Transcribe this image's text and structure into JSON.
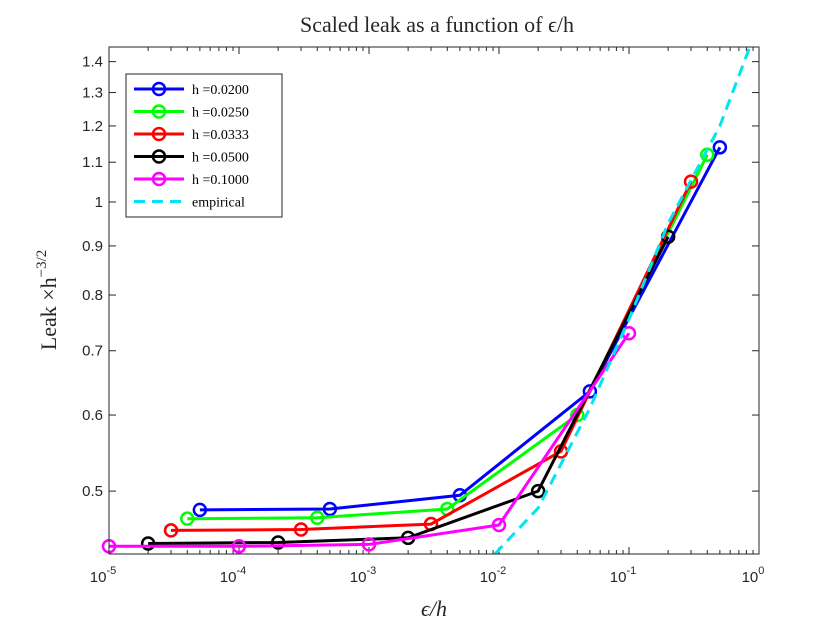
{
  "chart_data": {
    "type": "line",
    "title": "Scaled leak as a function of ϵ/h",
    "xlabel": "ϵ/h",
    "ylabel": "Leak ×h",
    "ylabel_exponent": "−3/2",
    "x_scale": "log",
    "y_scale": "log",
    "xlim": [
      1e-05,
      1
    ],
    "ylim": [
      0.43,
      1.45
    ],
    "x_ticks": [
      {
        "value": 1e-05,
        "base": "10",
        "exp": "-5"
      },
      {
        "value": 0.0001,
        "base": "10",
        "exp": "-4"
      },
      {
        "value": 0.001,
        "base": "10",
        "exp": "-3"
      },
      {
        "value": 0.01,
        "base": "10",
        "exp": "-2"
      },
      {
        "value": 0.1,
        "base": "10",
        "exp": "-1"
      },
      {
        "value": 1,
        "base": "10",
        "exp": "0"
      }
    ],
    "y_ticks": [
      {
        "value": 0.5,
        "label": "0.5"
      },
      {
        "value": 0.6,
        "label": "0.6"
      },
      {
        "value": 0.7,
        "label": "0.7"
      },
      {
        "value": 0.8,
        "label": "0.8"
      },
      {
        "value": 0.9,
        "label": "0.9"
      },
      {
        "value": 1.0,
        "label": "1"
      },
      {
        "value": 1.1,
        "label": "1.1"
      },
      {
        "value": 1.2,
        "label": "1.2"
      },
      {
        "value": 1.3,
        "label": "1.3"
      },
      {
        "value": 1.4,
        "label": "1.4"
      }
    ],
    "grid": false,
    "legend_position": "top-left",
    "series": [
      {
        "name": "h =0.0200",
        "color": "#0000ff",
        "marker": "circle",
        "x": [
          5e-05,
          0.0005,
          0.005,
          0.05,
          0.5
        ],
        "y": [
          0.478,
          0.479,
          0.495,
          0.635,
          1.14
        ]
      },
      {
        "name": "h =0.0250",
        "color": "#00ff00",
        "marker": "circle",
        "x": [
          4e-05,
          0.0004,
          0.004,
          0.04,
          0.4
        ],
        "y": [
          0.468,
          0.469,
          0.479,
          0.6,
          1.12
        ]
      },
      {
        "name": "h =0.0333",
        "color": "#ff0000",
        "marker": "circle",
        "x": [
          3e-05,
          0.0003,
          0.003,
          0.03,
          0.3
        ],
        "y": [
          0.455,
          0.456,
          0.462,
          0.55,
          1.05
        ]
      },
      {
        "name": "h =0.0500",
        "color": "#000000",
        "marker": "circle",
        "x": [
          2e-05,
          0.0002,
          0.002,
          0.02,
          0.2
        ],
        "y": [
          0.441,
          0.442,
          0.447,
          0.5,
          0.92
        ]
      },
      {
        "name": "h =0.1000",
        "color": "#ff00ff",
        "marker": "circle",
        "x": [
          1e-05,
          0.0001,
          0.001,
          0.01,
          0.1
        ],
        "y": [
          0.438,
          0.438,
          0.44,
          0.461,
          0.73
        ]
      },
      {
        "name": "empirical",
        "color": "#00e5ee",
        "style": "dashed",
        "x": [
          0.0093,
          0.02,
          0.05,
          0.1,
          0.2,
          0.5,
          0.85
        ],
        "y": [
          0.43,
          0.48,
          0.61,
          0.755,
          0.95,
          1.2,
          1.45
        ]
      }
    ]
  }
}
